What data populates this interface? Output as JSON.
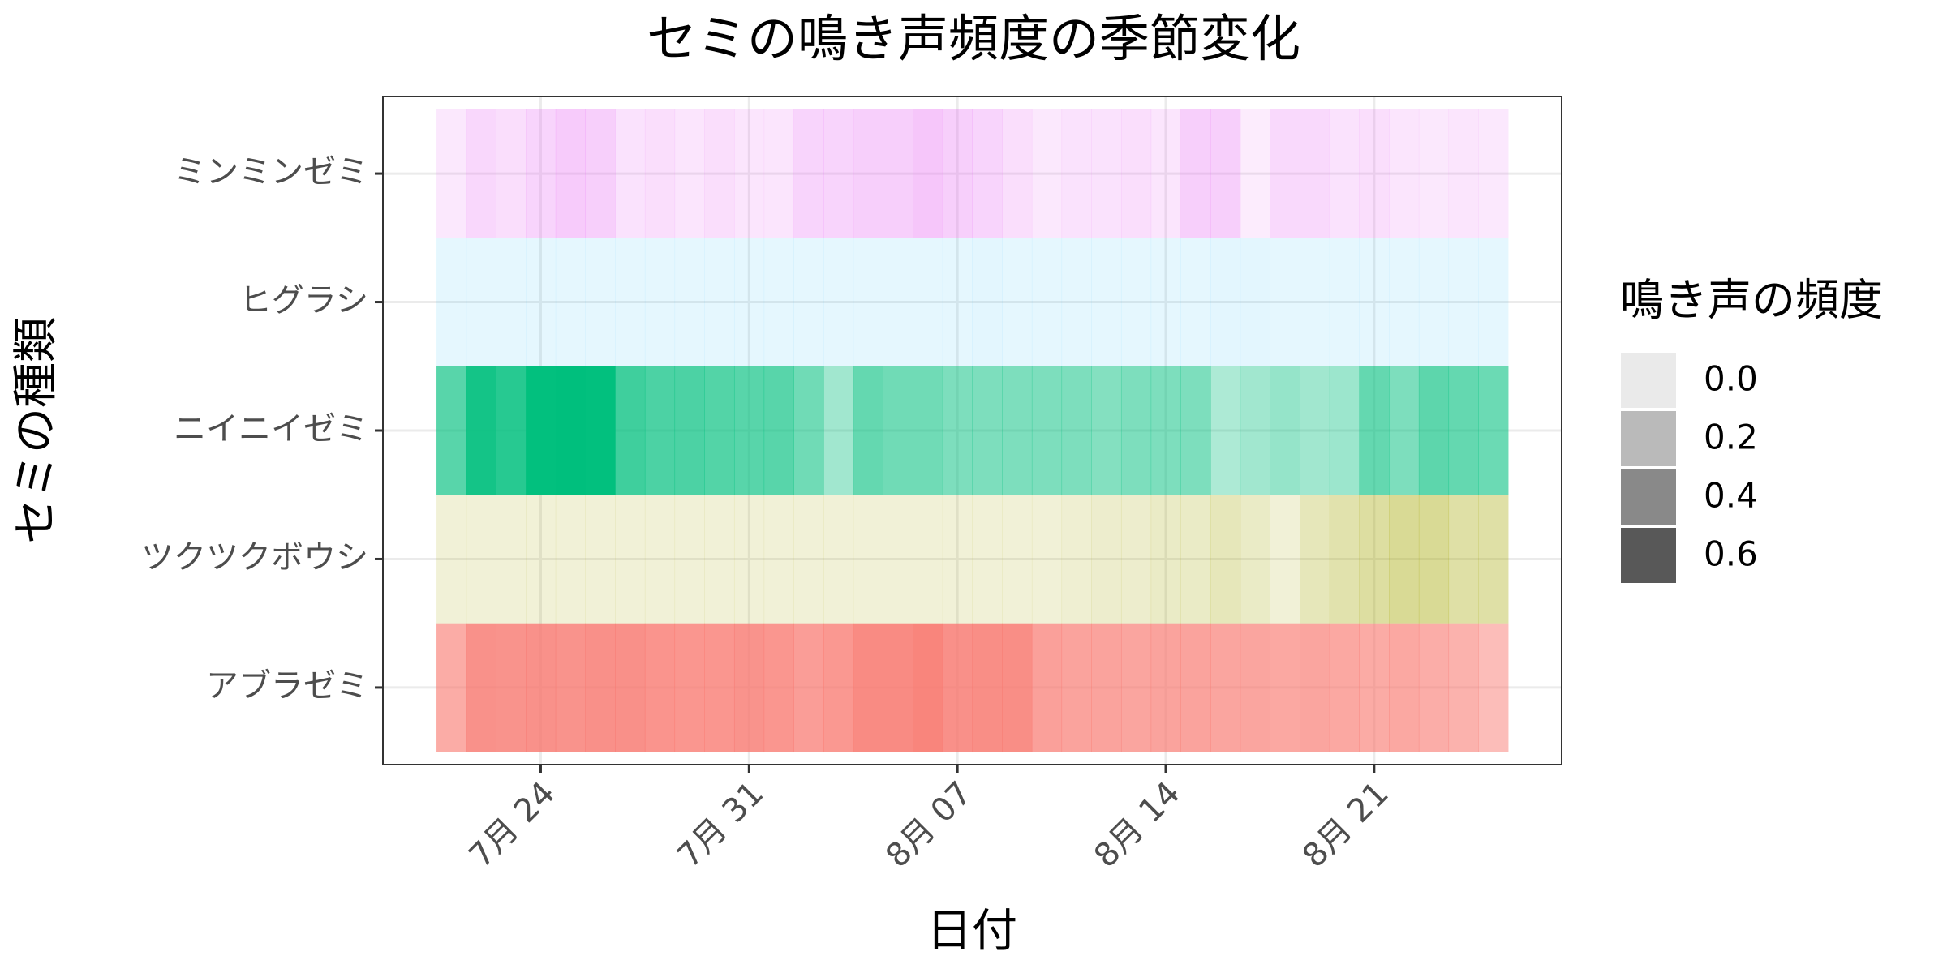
{
  "chart_data": {
    "type": "heatmap",
    "title": "セミの鳴き声頻度の季節変化",
    "x_label": "日付",
    "y_label": "セミの種類",
    "legend_title": "鳴き声の頻度",
    "x": [
      "07-21",
      "07-22",
      "07-23",
      "07-24",
      "07-25",
      "07-26",
      "07-27",
      "07-28",
      "07-29",
      "07-30",
      "07-31",
      "08-01",
      "08-02",
      "08-03",
      "08-04",
      "08-05",
      "08-06",
      "08-07",
      "08-08",
      "08-09",
      "08-10",
      "08-11",
      "08-12",
      "08-13",
      "08-14",
      "08-15",
      "08-16",
      "08-17",
      "08-18",
      "08-19",
      "08-20",
      "08-21",
      "08-22",
      "08-23",
      "08-24",
      "08-25"
    ],
    "xticks": [
      {
        "value": "07-24",
        "label": "7月 24"
      },
      {
        "value": "07-31",
        "label": "7月 31"
      },
      {
        "value": "08-07",
        "label": "8月 07"
      },
      {
        "value": "08-14",
        "label": "8月 14"
      },
      {
        "value": "08-21",
        "label": "8月 21"
      }
    ],
    "legend_ticks": [
      {
        "value": 0,
        "label": "0.0"
      },
      {
        "value": 0.2,
        "label": "0.2"
      },
      {
        "value": 0.4,
        "label": "0.4"
      },
      {
        "value": 0.6,
        "label": "0.6"
      }
    ],
    "grid": true,
    "series": [
      {
        "name": "アブラゼミ",
        "color": "#F8766D",
        "values": [
          0.55,
          0.75,
          0.74,
          0.75,
          0.74,
          0.76,
          0.76,
          0.73,
          0.72,
          0.72,
          0.74,
          0.72,
          0.66,
          0.7,
          0.8,
          0.8,
          0.85,
          0.76,
          0.78,
          0.78,
          0.64,
          0.62,
          0.62,
          0.6,
          0.62,
          0.62,
          0.6,
          0.6,
          0.58,
          0.6,
          0.58,
          0.56,
          0.58,
          0.54,
          0.5,
          0.42
        ]
      },
      {
        "name": "ツクツクボウシ",
        "color": "#A3A500",
        "values": [
          0.08,
          0.08,
          0.08,
          0.08,
          0.08,
          0.08,
          0.08,
          0.08,
          0.08,
          0.08,
          0.08,
          0.08,
          0.08,
          0.08,
          0.08,
          0.08,
          0.08,
          0.08,
          0.08,
          0.08,
          0.08,
          0.1,
          0.12,
          0.12,
          0.15,
          0.15,
          0.2,
          0.15,
          0.08,
          0.2,
          0.25,
          0.3,
          0.35,
          0.35,
          0.28,
          0.28
        ]
      },
      {
        "name": "ニイニイゼミ",
        "color": "#00BF7D",
        "values": [
          0.6,
          0.88,
          0.8,
          0.95,
          0.96,
          0.95,
          0.7,
          0.65,
          0.65,
          0.62,
          0.6,
          0.6,
          0.5,
          0.3,
          0.55,
          0.5,
          0.5,
          0.45,
          0.45,
          0.45,
          0.45,
          0.45,
          0.42,
          0.45,
          0.45,
          0.45,
          0.25,
          0.3,
          0.35,
          0.3,
          0.32,
          0.55,
          0.45,
          0.58,
          0.55,
          0.52
        ]
      },
      {
        "name": "ヒグラシ",
        "color": "#00B0F6",
        "values": [
          0.02,
          0.02,
          0.02,
          0.02,
          0.02,
          0.02,
          0.02,
          0.02,
          0.02,
          0.02,
          0.02,
          0.02,
          0.02,
          0.02,
          0.02,
          0.02,
          0.02,
          0.02,
          0.03,
          0.02,
          0.02,
          0.02,
          0.02,
          0.02,
          0.02,
          0.02,
          0.03,
          0.03,
          0.02,
          0.02,
          0.02,
          0.02,
          0.02,
          0.02,
          0.02,
          0.02
        ]
      },
      {
        "name": "ミンミンゼミ",
        "color": "#E76BF3",
        "values": [
          0.08,
          0.2,
          0.15,
          0.22,
          0.28,
          0.25,
          0.12,
          0.15,
          0.1,
          0.15,
          0.1,
          0.1,
          0.22,
          0.22,
          0.25,
          0.25,
          0.32,
          0.25,
          0.22,
          0.15,
          0.08,
          0.12,
          0.12,
          0.15,
          0.1,
          0.25,
          0.25,
          0.05,
          0.18,
          0.18,
          0.12,
          0.15,
          0.1,
          0.08,
          0.1,
          0.08
        ]
      }
    ]
  }
}
